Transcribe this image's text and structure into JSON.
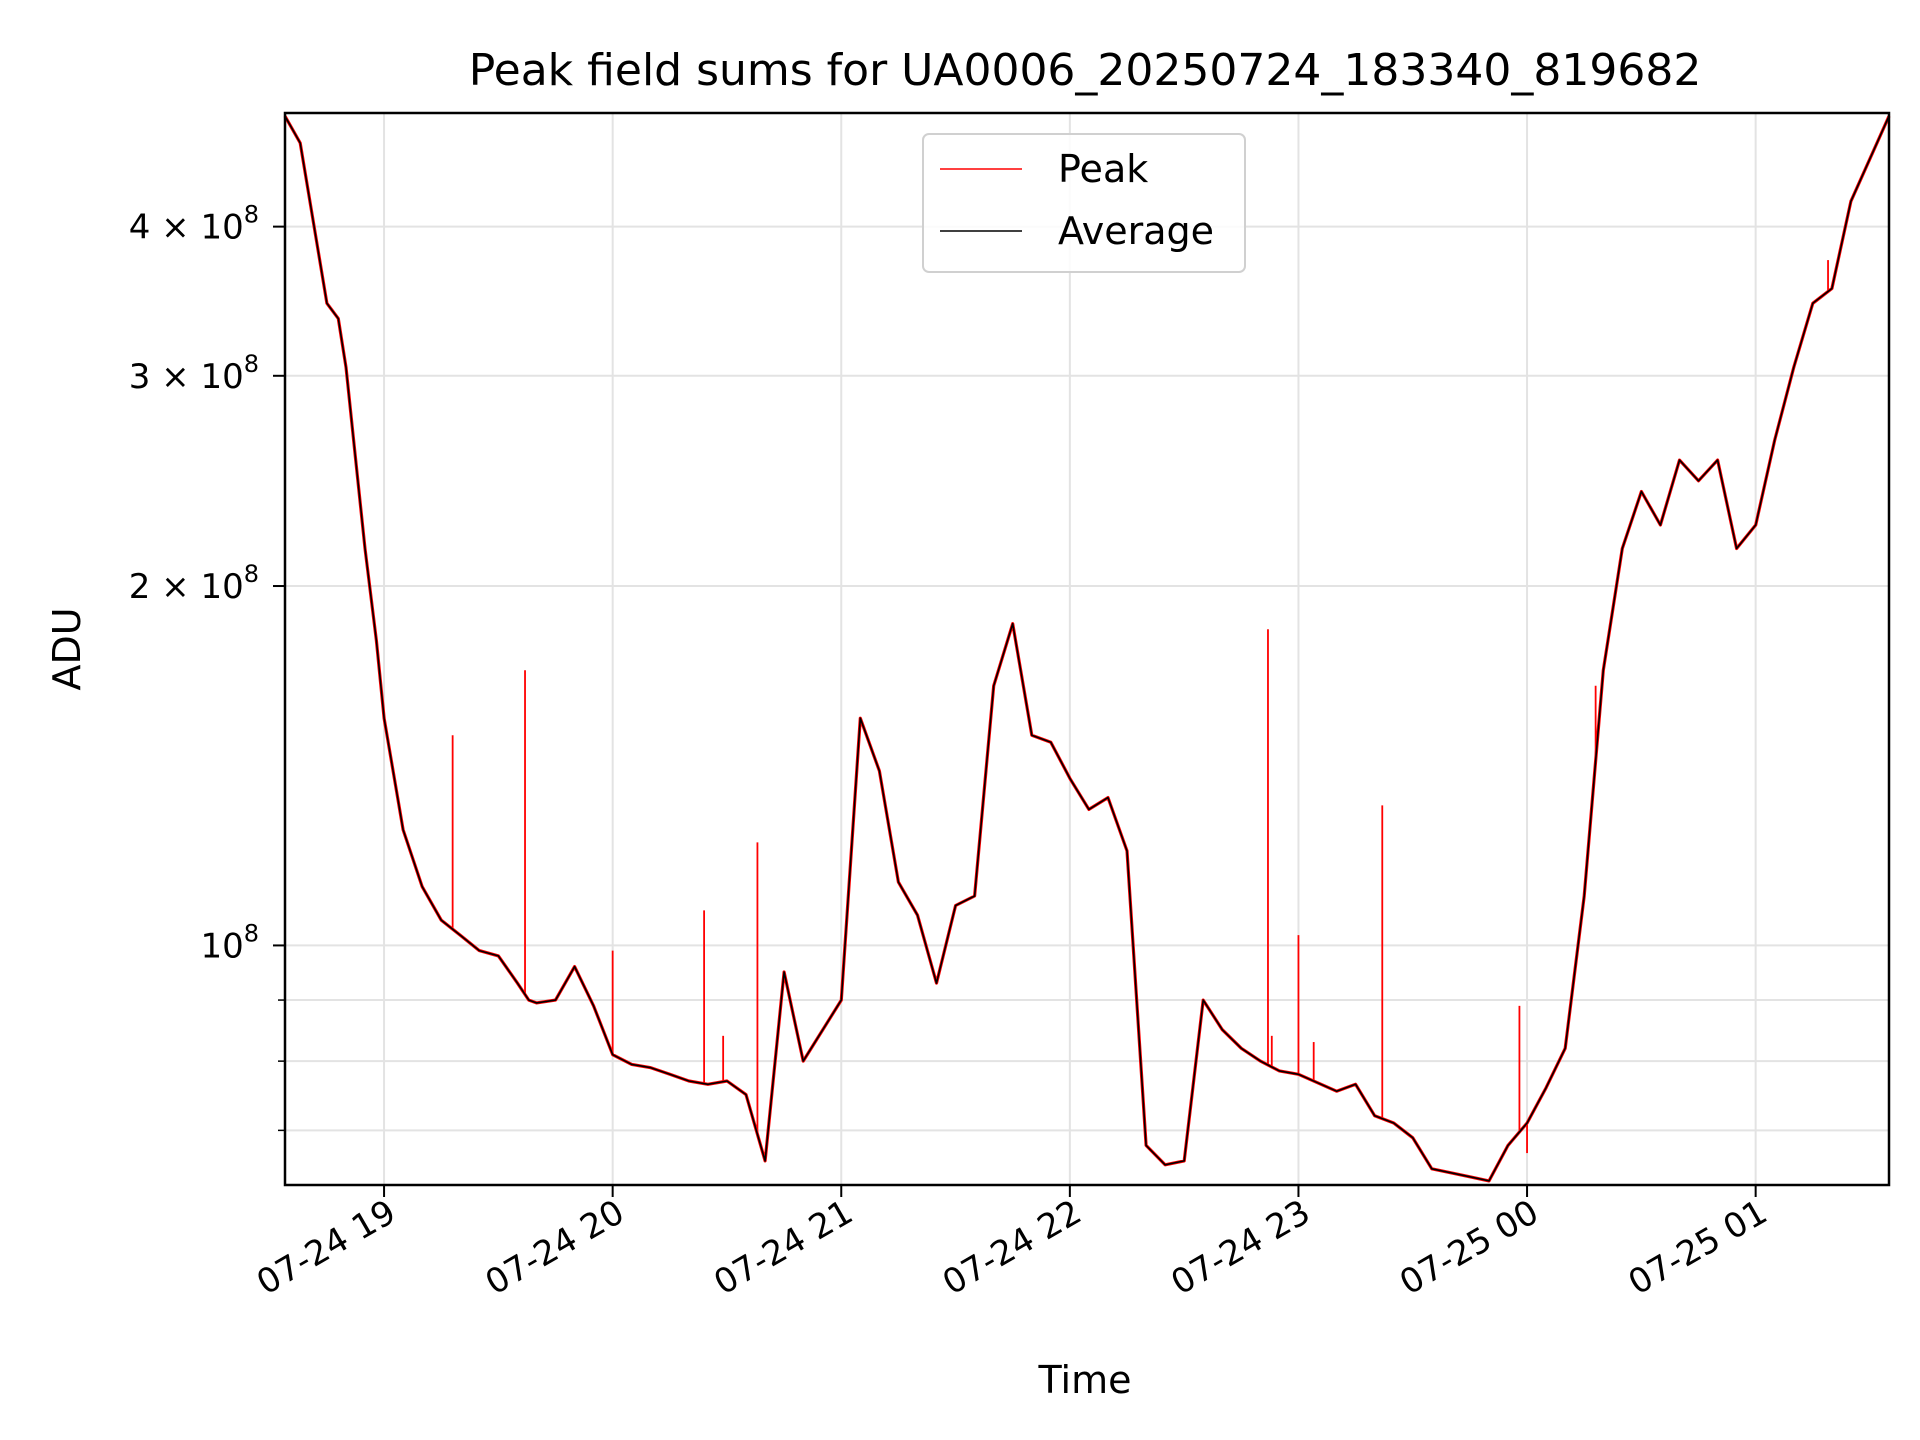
{
  "chart_data": {
    "type": "line",
    "title": "Peak field sums for UA0006_20250724_183340_819682",
    "xlabel": "Time",
    "ylabel": "ADU",
    "yscale": "log",
    "xlim": [
      "07-24 18:34",
      "07-25 01:35"
    ],
    "ylim": [
      63000000,
      498000000
    ],
    "grid": true,
    "legend_position": "top-center",
    "x_ticks": [
      "07-24 19",
      "07-24 20",
      "07-24 21",
      "07-24 22",
      "07-24 23",
      "07-25 00",
      "07-25 01"
    ],
    "y_ticks": [
      {
        "value": 400000000,
        "label_base": "4 × 10",
        "label_exp": "8"
      },
      {
        "value": 300000000,
        "label_base": "3 × 10",
        "label_exp": "8"
      },
      {
        "value": 200000000,
        "label_base": "2 × 10",
        "label_exp": "8"
      },
      {
        "value": 100000000,
        "label_base": "10",
        "label_exp": "8"
      }
    ],
    "y_minor_ticks": [
      90000000,
      80000000,
      70000000
    ],
    "series": [
      {
        "name": "Average",
        "color": "#000000",
        "x": [
          "07-24 18:34",
          "07-24 18:38",
          "07-24 18:45",
          "07-24 18:48",
          "07-24 18:50",
          "07-24 18:52",
          "07-24 18:55",
          "07-24 18:58",
          "07-24 19:00",
          "07-24 19:05",
          "07-24 19:10",
          "07-24 19:15",
          "07-24 19:20",
          "07-24 19:25",
          "07-24 19:30",
          "07-24 19:35",
          "07-24 19:38",
          "07-24 19:40",
          "07-24 19:45",
          "07-24 19:50",
          "07-24 19:55",
          "07-24 20:00",
          "07-24 20:05",
          "07-24 20:10",
          "07-24 20:15",
          "07-24 20:20",
          "07-24 20:25",
          "07-24 20:30",
          "07-24 20:35",
          "07-24 20:40",
          "07-24 20:45",
          "07-24 20:50",
          "07-24 21:00",
          "07-24 21:05",
          "07-24 21:10",
          "07-24 21:15",
          "07-24 21:20",
          "07-24 21:25",
          "07-24 21:30",
          "07-24 21:35",
          "07-24 21:40",
          "07-24 21:45",
          "07-24 21:50",
          "07-24 21:55",
          "07-24 22:00",
          "07-24 22:05",
          "07-24 22:10",
          "07-24 22:15",
          "07-24 22:20",
          "07-24 22:25",
          "07-24 22:30",
          "07-24 22:35",
          "07-24 22:40",
          "07-24 22:45",
          "07-24 22:50",
          "07-24 22:55",
          "07-24 23:00",
          "07-24 23:10",
          "07-24 23:15",
          "07-24 23:20",
          "07-24 23:25",
          "07-24 23:30",
          "07-24 23:35",
          "07-24 23:40",
          "07-24 23:45",
          "07-24 23:50",
          "07-24 23:55",
          "07-25 00:00",
          "07-25 00:05",
          "07-25 00:10",
          "07-25 00:15",
          "07-25 00:20",
          "07-25 00:25",
          "07-25 00:30",
          "07-25 00:35",
          "07-25 00:40",
          "07-25 00:45",
          "07-25 00:50",
          "07-25 00:55",
          "07-25 01:00",
          "07-25 01:05",
          "07-25 01:10",
          "07-25 01:15",
          "07-25 01:20",
          "07-25 01:25",
          "07-25 01:35"
        ],
        "values": [
          495000000,
          470000000,
          345000000,
          335000000,
          305000000,
          265000000,
          215000000,
          180000000,
          155000000,
          125000000,
          112000000,
          105000000,
          102000000,
          99000000,
          98000000,
          93000000,
          90000000,
          89500000,
          90000000,
          96000000,
          89000000,
          81000000,
          79500000,
          79000000,
          78000000,
          77000000,
          76500000,
          77000000,
          75000000,
          66000000,
          95000000,
          80000000,
          90000000,
          155000000,
          140000000,
          113000000,
          106000000,
          93000000,
          108000000,
          110000000,
          165000000,
          186000000,
          150000000,
          148000000,
          138000000,
          130000000,
          133000000,
          120000000,
          68000000,
          65500000,
          66000000,
          90000000,
          85000000,
          82000000,
          80000000,
          78500000,
          78000000,
          75500000,
          76500000,
          72000000,
          71000000,
          69000000,
          65000000,
          64500000,
          64000000,
          63500000,
          68000000,
          71000000,
          76000000,
          82000000,
          110000000,
          170000000,
          215000000,
          240000000,
          225000000,
          255000000,
          245000000,
          255000000,
          215000000,
          225000000,
          265000000,
          305000000,
          345000000,
          355000000,
          420000000,
          495000000
        ]
      },
      {
        "name": "Peak",
        "color": "#ff0000",
        "spikes": [
          {
            "x": "07-24 19:18",
            "value": 150000000
          },
          {
            "x": "07-24 19:37",
            "value": 170000000
          },
          {
            "x": "07-24 20:00",
            "value": 99000000
          },
          {
            "x": "07-24 20:24",
            "value": 107000000
          },
          {
            "x": "07-24 20:29",
            "value": 84000000
          },
          {
            "x": "07-24 20:38",
            "value": 122000000
          },
          {
            "x": "07-24 22:52",
            "value": 184000000
          },
          {
            "x": "07-24 22:53",
            "value": 84000000
          },
          {
            "x": "07-24 23:00",
            "value": 102000000
          },
          {
            "x": "07-24 23:04",
            "value": 83000000
          },
          {
            "x": "07-24 23:22",
            "value": 131000000
          },
          {
            "x": "07-24 23:58",
            "value": 89000000
          },
          {
            "x": "07-25 00:00",
            "value": 67000000
          },
          {
            "x": "07-25 00:18",
            "value": 165000000
          },
          {
            "x": "07-25 01:19",
            "value": 375000000
          }
        ]
      }
    ]
  }
}
